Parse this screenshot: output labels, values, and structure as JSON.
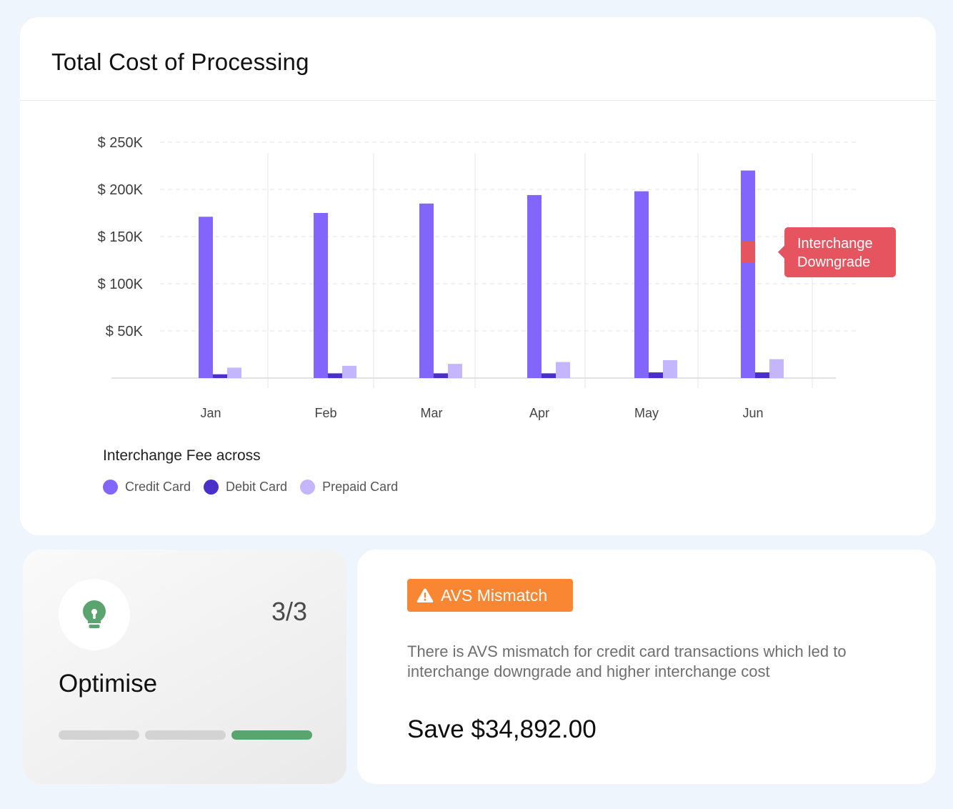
{
  "chart_card": {
    "title": "Total Cost of Processing",
    "legend_title": "Interchange Fee across"
  },
  "chart_data": {
    "type": "bar",
    "title": "Total Cost of Processing",
    "categories": [
      "Jan",
      "Feb",
      "Mar",
      "Apr",
      "May",
      "Jun"
    ],
    "series": [
      {
        "name": "Credit Card",
        "color": "#8265fa",
        "values": [
          171000,
          175000,
          185000,
          194000,
          198000,
          220000
        ]
      },
      {
        "name": "Debit Card",
        "color": "#4a2fc9",
        "values": [
          4000,
          5000,
          5000,
          5000,
          6000,
          6000
        ]
      },
      {
        "name": "Prepaid Card",
        "color": "#c3b6fc",
        "values": [
          11000,
          13000,
          15000,
          17000,
          19000,
          20000
        ]
      }
    ],
    "y_ticks": [
      {
        "value": 250000,
        "label": "$ 250K"
      },
      {
        "value": 200000,
        "label": "$ 200K"
      },
      {
        "value": 150000,
        "label": "$ 150K"
      },
      {
        "value": 100000,
        "label": "$ 100K"
      },
      {
        "value": 50000,
        "label": "$ 50K"
      }
    ],
    "ylim": [
      0,
      250000
    ],
    "grid": true,
    "highlight": {
      "category": "Jun",
      "series": "Credit Card",
      "from": 122000,
      "to": 145000,
      "color": "#e5545f",
      "label": "Interchange Downgrade"
    }
  },
  "optimise_card": {
    "icon": "lightbulb-icon",
    "step": "3/3",
    "title": "Optimise",
    "progress": {
      "total": 3,
      "current": 3,
      "active_color": "#5aa46f",
      "inactive_color": "#d3d3d3"
    }
  },
  "insight_card": {
    "badge_icon": "warning-icon",
    "badge_label": "AVS Mismatch",
    "badge_color": "#f98633",
    "description": "There is AVS mismatch for credit card transactions which led to interchange downgrade and higher interchange cost",
    "savings": "Save $34,892.00"
  }
}
